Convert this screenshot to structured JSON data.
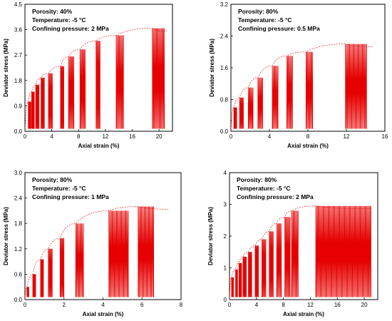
{
  "chart_data": [
    {
      "type": "line",
      "annotations": [
        "Porosity: 40%",
        "Temperature: -5 °C",
        "Confining pressure: 2 MPa"
      ],
      "xlabel": "Axial strain (%)",
      "ylabel": "Deviator stress (MPa)",
      "xlim": [
        0,
        22
      ],
      "ylim": [
        0,
        4.5
      ],
      "xticks": [
        0,
        4,
        8,
        12,
        16,
        20
      ],
      "yticks": [
        0.0,
        0.9,
        1.8,
        2.7,
        3.6,
        4.5
      ],
      "ytick_labels": [
        "0.0",
        "0.9",
        "1.8",
        "2.7",
        "3.6",
        "4.5"
      ],
      "x_end": 21.2,
      "cycles": [
        {
          "x_start": 0.5,
          "x_end": 0.9,
          "peak": 1.05
        },
        {
          "x_start": 1.0,
          "x_end": 1.4,
          "peak": 1.4
        },
        {
          "x_start": 1.6,
          "x_end": 2.1,
          "peak": 1.65
        },
        {
          "x_start": 2.4,
          "x_end": 2.9,
          "peak": 1.9
        },
        {
          "x_start": 3.5,
          "x_end": 4.1,
          "peak": 2.05
        },
        {
          "x_start": 5.3,
          "x_end": 5.8,
          "peak": 2.3
        },
        {
          "x_start": 6.5,
          "x_end": 7.3,
          "peak": 2.65
        },
        {
          "x_start": 8.2,
          "x_end": 9.0,
          "peak": 2.9
        },
        {
          "x_start": 10.6,
          "x_end": 11.2,
          "peak": 3.2
        },
        {
          "x_start": 13.6,
          "x_end": 14.7,
          "peak": 3.4
        },
        {
          "x_start": 19.0,
          "x_end": 20.8,
          "peak": 3.65
        }
      ]
    },
    {
      "type": "line",
      "annotations": [
        "Porosity: 80%",
        "Temperature: -5 °C",
        "Confining pressure: 0.5 MPa"
      ],
      "xlabel": "Axial strain (%)",
      "ylabel": "Deviator stress (MPa)",
      "xlim": [
        0,
        16
      ],
      "ylim": [
        0,
        3.2
      ],
      "xticks": [
        0,
        4,
        8,
        12,
        16
      ],
      "yticks": [
        0.0,
        0.8,
        1.6,
        2.4,
        3.2
      ],
      "ytick_labels": [
        "0.0",
        "0.8",
        "1.6",
        "2.4",
        "3.2"
      ],
      "x_end": 14.8,
      "cycles": [
        {
          "x_start": 0.3,
          "x_end": 0.6,
          "peak": 0.6
        },
        {
          "x_start": 0.9,
          "x_end": 1.3,
          "peak": 0.85
        },
        {
          "x_start": 1.8,
          "x_end": 2.3,
          "peak": 1.1
        },
        {
          "x_start": 2.8,
          "x_end": 3.3,
          "peak": 1.35
        },
        {
          "x_start": 4.3,
          "x_end": 4.9,
          "peak": 1.65
        },
        {
          "x_start": 5.8,
          "x_end": 6.4,
          "peak": 1.9
        },
        {
          "x_start": 7.8,
          "x_end": 8.5,
          "peak": 2.0
        },
        {
          "x_start": 11.9,
          "x_end": 14.1,
          "peak": 2.2
        }
      ]
    },
    {
      "type": "line",
      "annotations": [
        "Porosity: 80%",
        "Temperature: -5 °C",
        "Confining pressure: 1 MPa"
      ],
      "xlabel": "Axial strain (%)",
      "ylabel": "Deviator stress (MPa)",
      "xlim": [
        0,
        8
      ],
      "ylim": [
        0,
        3.0
      ],
      "xticks": [
        0,
        2,
        4,
        6,
        8
      ],
      "yticks": [
        0.0,
        0.6,
        1.2,
        1.8,
        2.4,
        3.0
      ],
      "ytick_labels": [
        "0.0",
        "0.6",
        "1.2",
        "1.8",
        "2.4",
        "3.0"
      ],
      "x_end": 7.4,
      "cycles": [
        {
          "x_start": 0.1,
          "x_end": 0.2,
          "peak": 0.3
        },
        {
          "x_start": 0.4,
          "x_end": 0.55,
          "peak": 0.6
        },
        {
          "x_start": 0.8,
          "x_end": 0.95,
          "peak": 0.95
        },
        {
          "x_start": 1.2,
          "x_end": 1.4,
          "peak": 1.2
        },
        {
          "x_start": 1.8,
          "x_end": 2.0,
          "peak": 1.45
        },
        {
          "x_start": 2.6,
          "x_end": 3.0,
          "peak": 1.8
        },
        {
          "x_start": 4.3,
          "x_end": 5.3,
          "peak": 2.1
        },
        {
          "x_start": 5.8,
          "x_end": 6.6,
          "peak": 2.2
        }
      ]
    },
    {
      "type": "line",
      "annotations": [
        "Porosity: 80%",
        "Temperature: -5 °C",
        "Confining pressure: 2 MPa"
      ],
      "xlabel": "Axial strain (%)",
      "ylabel": "Deviator stress (MPa)",
      "xlim": [
        0,
        22
      ],
      "ylim": [
        0,
        4
      ],
      "xticks": [
        0,
        4,
        8,
        12,
        16,
        20
      ],
      "yticks": [
        0,
        1,
        2,
        3,
        4
      ],
      "ytick_labels": [
        "0",
        "1",
        "2",
        "3",
        "4"
      ],
      "x_end": 21.0,
      "cycles": [
        {
          "x_start": 0.3,
          "x_end": 0.6,
          "peak": 0.7
        },
        {
          "x_start": 0.9,
          "x_end": 1.2,
          "peak": 0.95
        },
        {
          "x_start": 1.4,
          "x_end": 1.8,
          "peak": 1.15
        },
        {
          "x_start": 2.0,
          "x_end": 2.5,
          "peak": 1.35
        },
        {
          "x_start": 2.8,
          "x_end": 3.3,
          "peak": 1.5
        },
        {
          "x_start": 3.8,
          "x_end": 4.3,
          "peak": 1.7
        },
        {
          "x_start": 4.8,
          "x_end": 5.4,
          "peak": 1.9
        },
        {
          "x_start": 5.9,
          "x_end": 6.5,
          "peak": 2.15
        },
        {
          "x_start": 7.0,
          "x_end": 7.7,
          "peak": 2.4
        },
        {
          "x_start": 8.2,
          "x_end": 9.0,
          "peak": 2.6
        },
        {
          "x_start": 9.2,
          "x_end": 10.2,
          "peak": 2.8
        },
        {
          "x_start": 12.8,
          "x_end": 21.0,
          "peak": 2.95
        }
      ]
    }
  ]
}
